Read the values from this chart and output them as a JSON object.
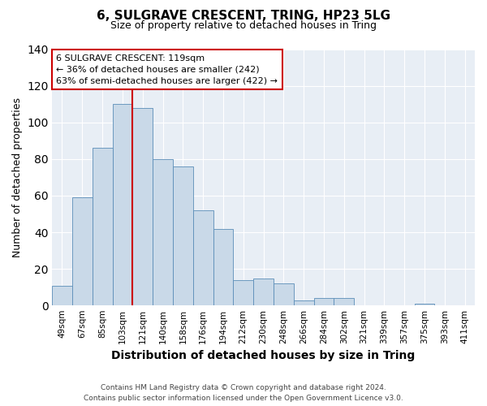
{
  "title": "6, SULGRAVE CRESCENT, TRING, HP23 5LG",
  "subtitle": "Size of property relative to detached houses in Tring",
  "xlabel": "Distribution of detached houses by size in Tring",
  "ylabel": "Number of detached properties",
  "bar_color": "#c9d9e8",
  "bar_edge_color": "#5b8db8",
  "bg_color": "#e8eef5",
  "categories": [
    "49sqm",
    "67sqm",
    "85sqm",
    "103sqm",
    "121sqm",
    "140sqm",
    "158sqm",
    "176sqm",
    "194sqm",
    "212sqm",
    "230sqm",
    "248sqm",
    "266sqm",
    "284sqm",
    "302sqm",
    "321sqm",
    "339sqm",
    "357sqm",
    "375sqm",
    "393sqm",
    "411sqm"
  ],
  "values": [
    11,
    59,
    86,
    110,
    108,
    80,
    76,
    52,
    42,
    14,
    15,
    12,
    3,
    4,
    4,
    0,
    0,
    0,
    1,
    0,
    0
  ],
  "vline_index": 4,
  "vline_color": "#cc0000",
  "annotation_line1": "6 SULGRAVE CRESCENT: 119sqm",
  "annotation_line2": "← 36% of detached houses are smaller (242)",
  "annotation_line3": "63% of semi-detached houses are larger (422) →",
  "annotation_box_color": "#cc0000",
  "ylim": [
    0,
    140
  ],
  "yticks": [
    0,
    20,
    40,
    60,
    80,
    100,
    120,
    140
  ],
  "footer1": "Contains HM Land Registry data © Crown copyright and database right 2024.",
  "footer2": "Contains public sector information licensed under the Open Government Licence v3.0."
}
